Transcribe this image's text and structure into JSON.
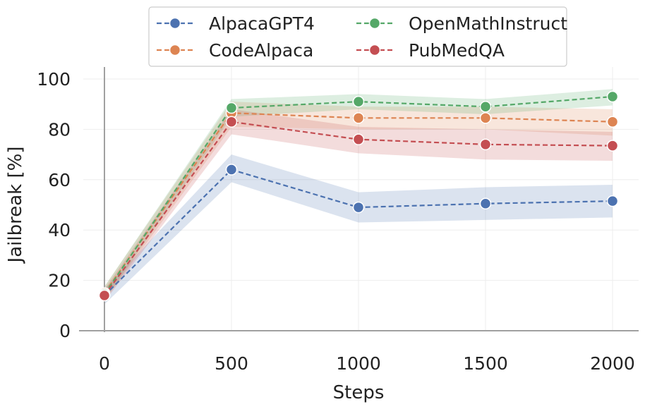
{
  "chart_data": {
    "type": "line",
    "title": "",
    "xlabel": "Steps",
    "ylabel": "Jailbreak [%]",
    "x": [
      0,
      500,
      1000,
      1500,
      2000
    ],
    "x_ticks": [
      "0",
      "500",
      "1000",
      "1500",
      "2000"
    ],
    "y_ticks": [
      "0",
      "20",
      "40",
      "60",
      "80",
      "100"
    ],
    "xlim": [
      0,
      2000
    ],
    "ylim": [
      0,
      100
    ],
    "grid": true,
    "legend_position": "top",
    "series": [
      {
        "name": "AlpacaGPT4",
        "color": "#4C72B0",
        "values": [
          14,
          64,
          49,
          50.5,
          51.5
        ],
        "lower": [
          10.5,
          59,
          43,
          44,
          45
        ],
        "upper": [
          16.5,
          70,
          55,
          57,
          58
        ]
      },
      {
        "name": "CodeAlpaca",
        "color": "#DD8452",
        "values": [
          15,
          86.5,
          84.5,
          84.5,
          83
        ],
        "lower": [
          12,
          81,
          80,
          80,
          77.5
        ],
        "upper": [
          17.5,
          91,
          89,
          89,
          88
        ]
      },
      {
        "name": "OpenMathInstruct",
        "color": "#55A868",
        "values": [
          14.5,
          88.5,
          91,
          89,
          93
        ],
        "lower": [
          12,
          85,
          88,
          86,
          89.5
        ],
        "upper": [
          17.5,
          92,
          94,
          92,
          96
        ]
      },
      {
        "name": "PubMedQA",
        "color": "#C44E52",
        "values": [
          14,
          83,
          76,
          74,
          73.5
        ],
        "lower": [
          11.5,
          78,
          70.5,
          68,
          67.5
        ],
        "upper": [
          16.5,
          88,
          81,
          80,
          79
        ]
      }
    ]
  }
}
